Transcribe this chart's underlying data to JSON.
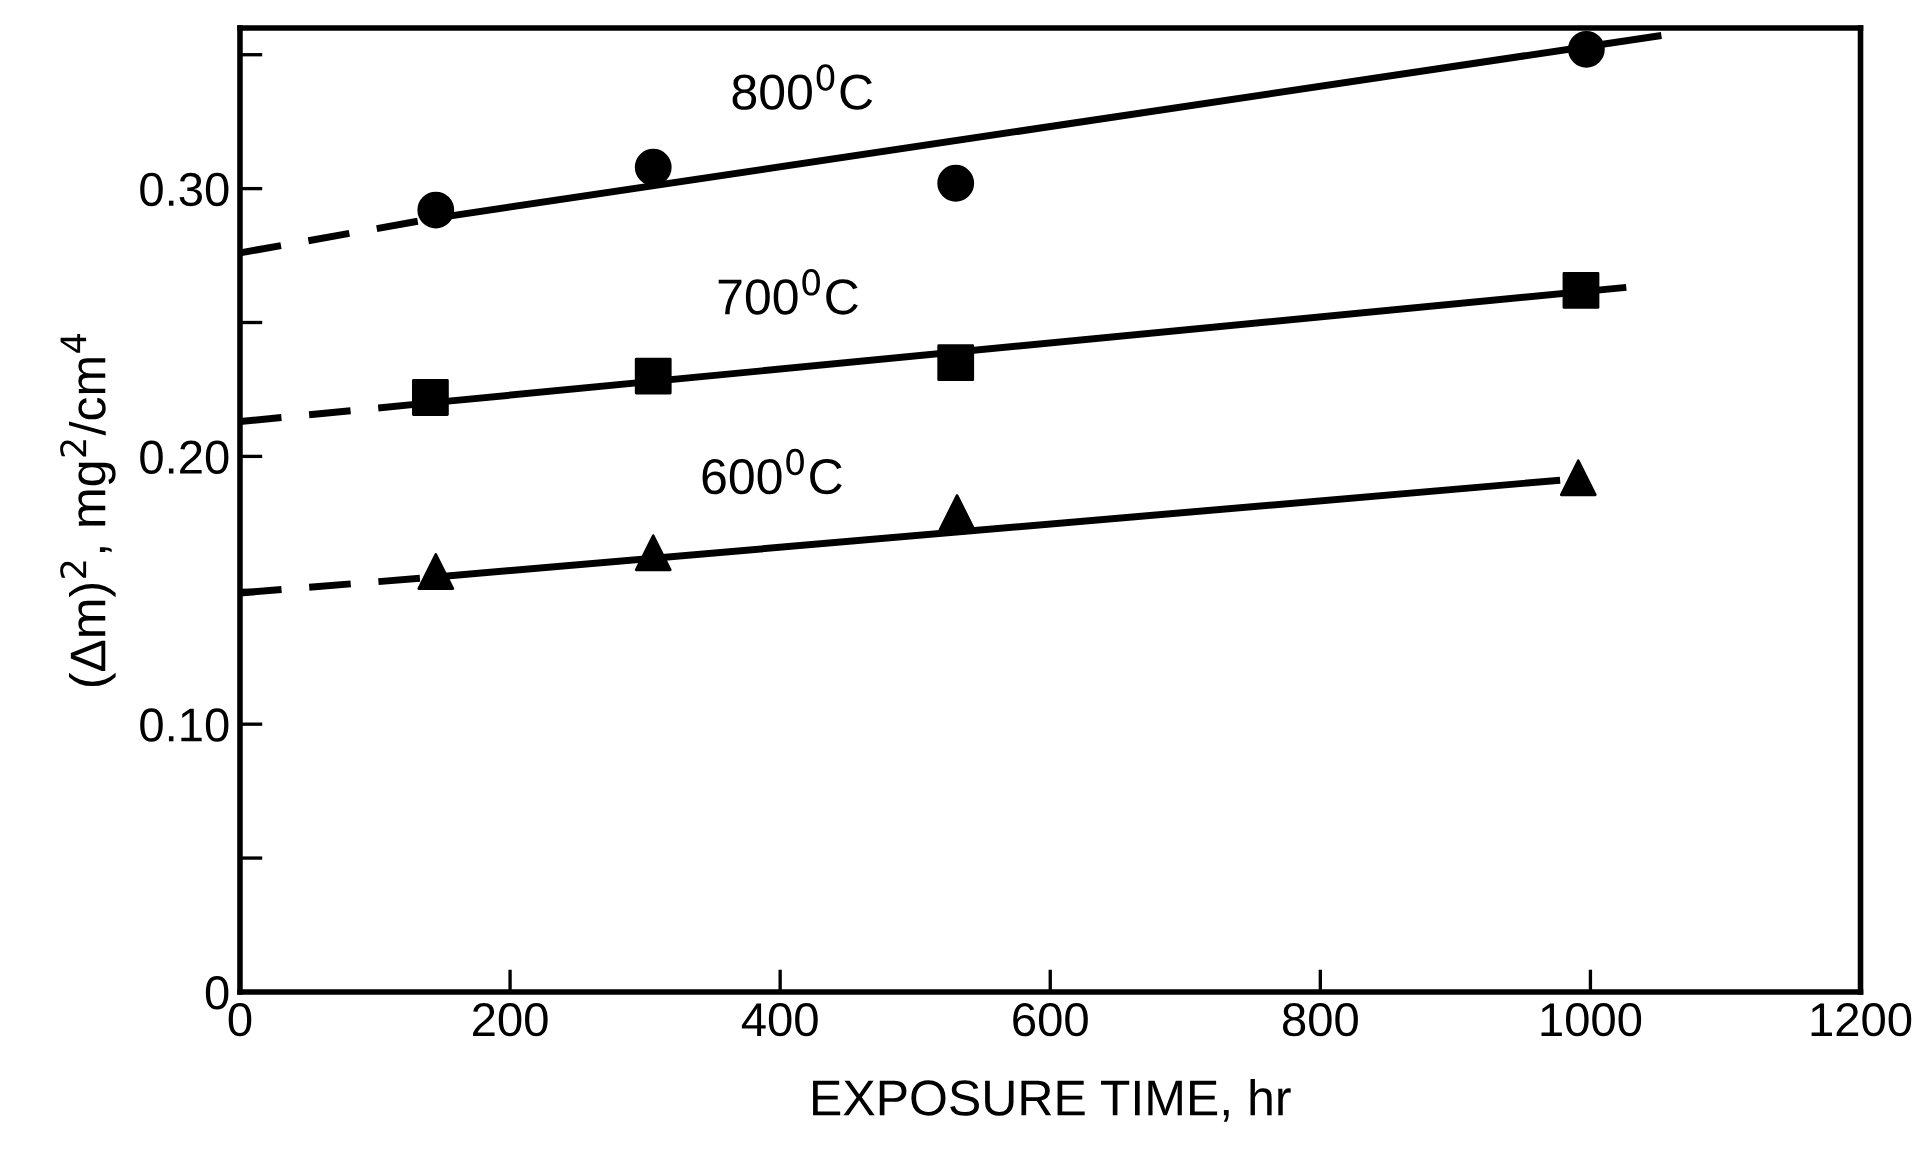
{
  "chart_data": {
    "type": "scatter",
    "xlabel": "EXPOSURE TIME, hr",
    "ylabel": "(Δm)$^{2}$, mg$^{2}$/cm$^{4}$",
    "xlim": [
      0,
      1200
    ],
    "ylim": [
      0,
      0.36
    ],
    "xticks": [
      0,
      200,
      400,
      600,
      800,
      1000,
      1200
    ],
    "yticks": [
      0,
      {
        "value": 0.05,
        "label": null
      },
      {
        "value": 0.1,
        "label": "0.10"
      },
      {
        "value": 0.15,
        "label": null
      },
      {
        "value": 0.2,
        "label": "0.20"
      },
      {
        "value": 0.25,
        "label": null
      },
      {
        "value": 0.3,
        "label": "0.30"
      },
      {
        "value": 0.35,
        "label": null
      }
    ],
    "grid": false,
    "legend": false,
    "series": [
      {
        "marker": "circle",
        "color": "#000000",
        "x": [
          145,
          306,
          530,
          997
        ],
        "values": [
          0.292,
          0.308,
          0.302,
          0.352
        ]
      },
      {
        "marker": "square",
        "color": "#000000",
        "x": [
          141,
          306,
          530,
          993
        ],
        "values": [
          0.222,
          0.23,
          0.235,
          0.262
        ]
      },
      {
        "marker": "triangle",
        "color": "#000000",
        "x": [
          145,
          306,
          531,
          991
        ],
        "values": [
          0.157,
          0.164,
          0.179,
          0.192
        ]
      },
      {
        "type": "line",
        "line_style": "dashed",
        "color": "#000000",
        "x": [
          0,
          145
        ],
        "values": [
          0.276,
          0.289
        ]
      },
      {
        "type": "line",
        "name": "800$^{0}$C",
        "line_style": "solid",
        "color": "#000000",
        "x": [
          145,
          1050
        ],
        "values": [
          0.289,
          0.357
        ]
      },
      {
        "type": "line",
        "line_style": "dashed",
        "color": "#000000",
        "x": [
          0,
          141
        ],
        "values": [
          0.213,
          0.22
        ]
      },
      {
        "type": "line",
        "name": "700$^{0}$C",
        "line_style": "solid",
        "color": "#000000",
        "x": [
          141,
          1024
        ],
        "values": [
          0.22,
          0.263
        ]
      },
      {
        "type": "line",
        "line_style": "dashed",
        "color": "#000000",
        "x": [
          0,
          145
        ],
        "values": [
          0.149,
          0.155
        ]
      },
      {
        "type": "line",
        "name": "600$^{0}$C",
        "line_style": "solid",
        "color": "#000000",
        "x": [
          145,
          975
        ],
        "values": [
          0.155,
          0.191
        ]
      }
    ]
  }
}
